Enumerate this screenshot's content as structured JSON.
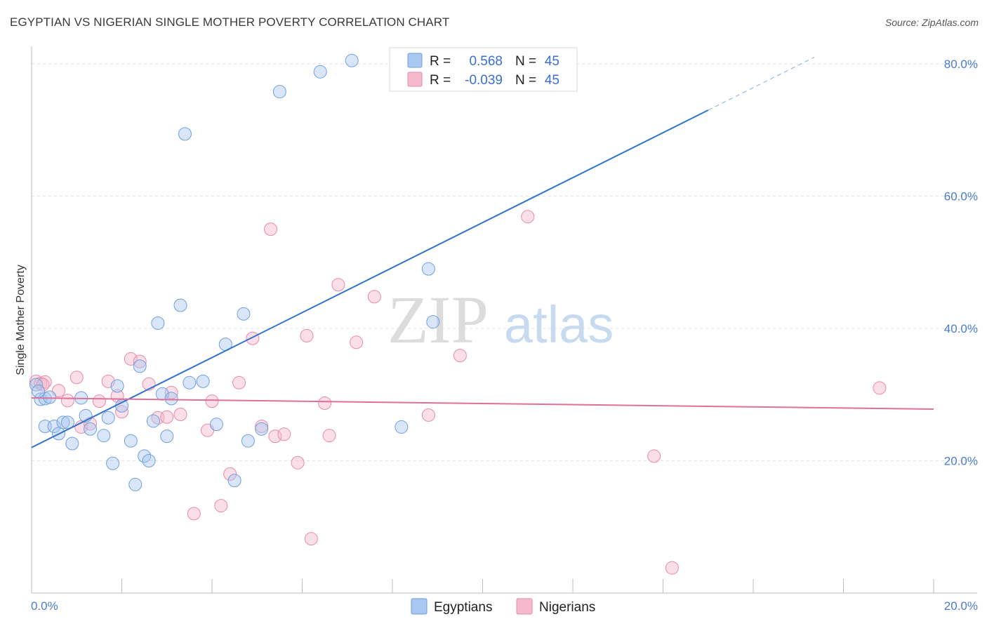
{
  "header": {
    "title": "EGYPTIAN VS NIGERIAN SINGLE MOTHER POVERTY CORRELATION CHART",
    "source": "Source: ZipAtlas.com"
  },
  "watermark": {
    "zip": "ZIP",
    "atlas": "atlas"
  },
  "legend": {
    "rows": [
      {
        "r_label": "R =",
        "r_value": "0.568",
        "n_label": "N =",
        "n_value": "45",
        "color": "#a8c8f0"
      },
      {
        "r_label": "R =",
        "r_value": "-0.039",
        "n_label": "N =",
        "n_value": "45",
        "color": "#f5b8cc"
      }
    ]
  },
  "bottom_legend": {
    "items": [
      "Egyptians",
      "Nigerians"
    ]
  },
  "colors": {
    "blue_fill": "#a8c8f0",
    "blue_stroke": "#6f9ee0",
    "blue_line": "#2f72d0",
    "pink_fill": "#f5b8cc",
    "pink_stroke": "#e88aa8",
    "pink_line": "#e0709a",
    "tick_text": "#4a7bd0",
    "grid": "#e2e2e2"
  },
  "chart_data": {
    "type": "scatter",
    "title": "EGYPTIAN VS NIGERIAN SINGLE MOTHER POVERTY CORRELATION CHART",
    "ylabel": "Single Mother Poverty",
    "xlabel": "",
    "xlim": [
      0,
      20
    ],
    "ylim": [
      0,
      80
    ],
    "x_tick_labels": [
      "0.0%",
      "20.0%"
    ],
    "y_tick_labels": [
      "20.0%",
      "40.0%",
      "60.0%",
      "80.0%"
    ],
    "y_ticks": [
      20,
      40,
      60,
      80
    ],
    "grid": true,
    "legend_position": "top-center",
    "series": [
      {
        "name": "Egyptians",
        "r": 0.568,
        "n": 45,
        "trend": {
          "x0": 0,
          "y0": 22,
          "x1": 15,
          "y1": 73,
          "dashed_to_x": 20,
          "dashed_to_y": 90
        },
        "points": [
          [
            0.1,
            31.5
          ],
          [
            0.2,
            29.3
          ],
          [
            0.3,
            29.4
          ],
          [
            0.3,
            25.2
          ],
          [
            0.5,
            25.2
          ],
          [
            0.6,
            24.1
          ],
          [
            0.7,
            25.8
          ],
          [
            0.8,
            25.8
          ],
          [
            0.9,
            22.6
          ],
          [
            1.1,
            29.5
          ],
          [
            1.2,
            26.8
          ],
          [
            1.3,
            24.8
          ],
          [
            1.6,
            23.8
          ],
          [
            1.7,
            26.5
          ],
          [
            1.8,
            19.6
          ],
          [
            1.9,
            31.3
          ],
          [
            2.0,
            28.3
          ],
          [
            2.2,
            23.0
          ],
          [
            2.3,
            16.4
          ],
          [
            2.4,
            34.3
          ],
          [
            2.5,
            20.7
          ],
          [
            2.6,
            20.0
          ],
          [
            2.7,
            26.0
          ],
          [
            2.8,
            40.8
          ],
          [
            2.9,
            30.1
          ],
          [
            3.0,
            23.7
          ],
          [
            3.1,
            29.4
          ],
          [
            3.3,
            43.5
          ],
          [
            3.4,
            69.4
          ],
          [
            3.5,
            31.8
          ],
          [
            3.8,
            32.0
          ],
          [
            4.1,
            25.5
          ],
          [
            4.3,
            37.6
          ],
          [
            4.5,
            17.0
          ],
          [
            4.7,
            42.2
          ],
          [
            4.8,
            23.0
          ],
          [
            5.1,
            24.8
          ],
          [
            5.5,
            75.8
          ],
          [
            6.4,
            78.8
          ],
          [
            7.1,
            80.5
          ],
          [
            8.2,
            25.1
          ],
          [
            8.8,
            49.0
          ],
          [
            8.9,
            41.0
          ],
          [
            0.15,
            30.5
          ],
          [
            0.4,
            29.6
          ]
        ]
      },
      {
        "name": "Nigerians",
        "r": -0.039,
        "n": 45,
        "trend": {
          "x0": 0,
          "y0": 29.5,
          "x1": 20,
          "y1": 27.8
        },
        "points": [
          [
            0.1,
            32.0
          ],
          [
            0.2,
            31.7
          ],
          [
            0.3,
            31.9
          ],
          [
            0.6,
            30.6
          ],
          [
            0.8,
            29.1
          ],
          [
            1.0,
            32.6
          ],
          [
            1.1,
            25.1
          ],
          [
            1.3,
            25.6
          ],
          [
            1.5,
            29.0
          ],
          [
            1.7,
            32.0
          ],
          [
            1.9,
            29.8
          ],
          [
            2.0,
            27.4
          ],
          [
            2.2,
            35.4
          ],
          [
            2.4,
            35.0
          ],
          [
            2.6,
            31.6
          ],
          [
            2.8,
            26.5
          ],
          [
            3.0,
            26.6
          ],
          [
            3.1,
            30.3
          ],
          [
            3.3,
            27.0
          ],
          [
            3.6,
            12.0
          ],
          [
            3.9,
            24.6
          ],
          [
            4.0,
            29.0
          ],
          [
            4.2,
            13.2
          ],
          [
            4.4,
            18.0
          ],
          [
            4.6,
            31.8
          ],
          [
            4.9,
            38.5
          ],
          [
            5.1,
            25.2
          ],
          [
            5.3,
            55.0
          ],
          [
            5.4,
            23.7
          ],
          [
            5.6,
            24.0
          ],
          [
            5.9,
            19.7
          ],
          [
            6.1,
            38.9
          ],
          [
            6.2,
            8.2
          ],
          [
            6.5,
            28.7
          ],
          [
            6.6,
            23.8
          ],
          [
            6.8,
            46.6
          ],
          [
            7.2,
            37.9
          ],
          [
            7.6,
            44.8
          ],
          [
            8.8,
            26.9
          ],
          [
            9.5,
            35.9
          ],
          [
            11.0,
            56.9
          ],
          [
            13.8,
            20.7
          ],
          [
            14.2,
            3.8
          ],
          [
            18.8,
            31.0
          ],
          [
            0.25,
            31.5
          ]
        ]
      }
    ]
  }
}
